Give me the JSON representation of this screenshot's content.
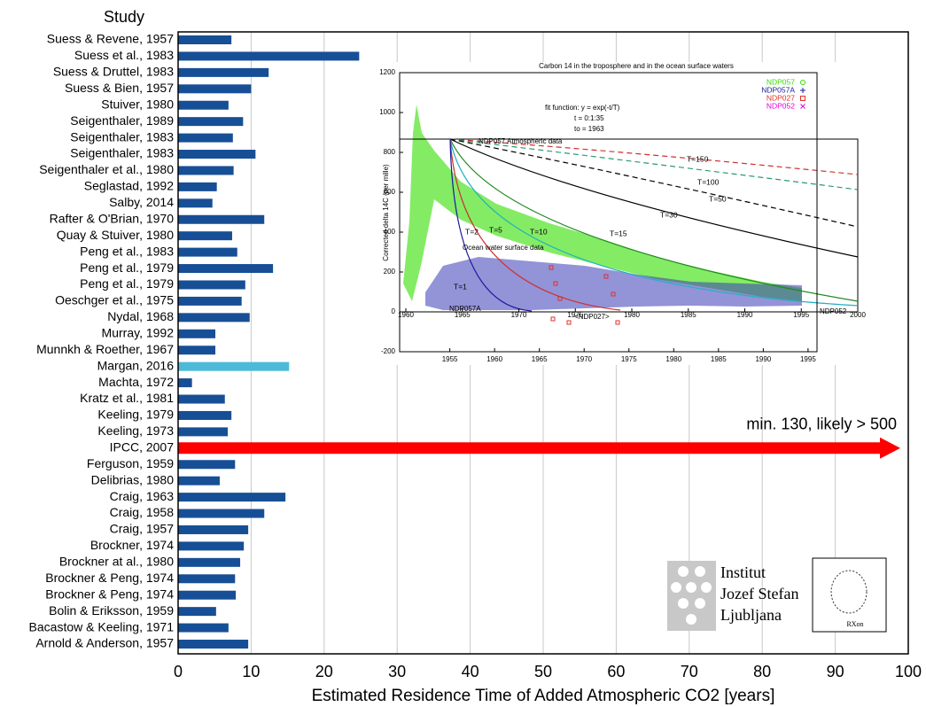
{
  "chart_data": [
    {
      "type": "bar",
      "orientation": "horizontal",
      "category_header": "Study",
      "x_label": "Estimated Residence Time of Added Atmospheric CO2 [years]",
      "categories": [
        "Suess & Revene, 1957",
        "Suess et al., 1983",
        "Suess & Druttel, 1983",
        "Suess & Bien, 1957",
        "Stuiver, 1980",
        "Seigenthaler, 1989",
        "Seigenthaler, 1983",
        "Seigenthaler, 1983",
        "Seigenthaler et al., 1980",
        "Seglastad, 1992",
        "Salby, 2014",
        "Rafter & O'Brian, 1970",
        "Quay & Stuiver, 1980",
        "Peng et al., 1983",
        "Peng et al., 1979",
        "Peng et al., 1979",
        "Oeschger et al., 1975",
        "Nydal, 1968",
        "Murray, 1992",
        "Munnkh & Roether, 1967",
        "Margan, 2016",
        "Machta, 1972",
        "Kratz et al., 1981",
        "Keeling, 1979",
        "Keeling, 1973",
        "IPCC, 2007",
        "Ferguson, 1959",
        "Delibrias, 1980",
        "Craig, 1963",
        "Craig, 1958",
        "Craig, 1957",
        "Brockner, 1974",
        "Brockner at al., 1980",
        "Brockner & Peng, 1974",
        "Brockner & Peng, 1974",
        "Bolin & Eriksson, 1959",
        "Bacastow & Keeling, 1971",
        "Arnold &  Anderson, 1957"
      ],
      "values": [
        7.3,
        24.8,
        12.4,
        10.0,
        6.9,
        8.9,
        7.5,
        10.6,
        7.6,
        5.3,
        4.7,
        11.8,
        7.4,
        8.1,
        13.0,
        9.2,
        8.7,
        9.8,
        5.1,
        5.1,
        15.2,
        1.9,
        6.4,
        7.3,
        6.8,
        null,
        7.8,
        5.7,
        14.7,
        11.8,
        9.6,
        9.0,
        8.5,
        7.8,
        7.9,
        5.2,
        6.9,
        9.6
      ],
      "colors": [
        "#174f96",
        "#174f96",
        "#174f96",
        "#174f96",
        "#174f96",
        "#174f96",
        "#174f96",
        "#174f96",
        "#174f96",
        "#174f96",
        "#174f96",
        "#174f96",
        "#174f96",
        "#174f96",
        "#174f96",
        "#174f96",
        "#174f96",
        "#174f96",
        "#174f96",
        "#174f96",
        "#4cbad8",
        "#174f96",
        "#174f96",
        "#174f96",
        "#174f96",
        "#ff0000",
        "#174f96",
        "#174f96",
        "#174f96",
        "#174f96",
        "#174f96",
        "#174f96",
        "#174f96",
        "#174f96",
        "#174f96",
        "#174f96",
        "#174f96",
        "#174f96"
      ],
      "annotations": [
        {
          "text": "min. 130, likely > 500",
          "color": "#ff0000"
        }
      ],
      "xlim": [
        0,
        100
      ],
      "xticks": [
        0,
        10,
        20,
        30,
        40,
        50,
        60,
        70,
        80,
        90,
        100
      ],
      "grid": true
    },
    {
      "type": "scatter",
      "title": "Carbon 14 in the troposphere and in the ocean surface waters",
      "y_label": "Corrected delta 14C (per mille)",
      "xlim": [
        1949.4,
        1996
      ],
      "xticks": [
        1955,
        1960,
        1965,
        1970,
        1975,
        1980,
        1985,
        1990,
        1995
      ],
      "x2lim": [
        1959.45,
        2000
      ],
      "x2ticks": [
        1960,
        1965,
        1970,
        1975,
        1980,
        1985,
        1990,
        1995,
        2000
      ],
      "ylim": [
        -200,
        1200
      ],
      "yticks": [
        -200,
        0,
        200,
        400,
        600,
        800,
        1000,
        1200
      ],
      "legend": [
        {
          "name": "NDP057",
          "color": "#33dd00"
        },
        {
          "name": "NDP057A",
          "color": "#1a1aa0"
        },
        {
          "name": "NDP027",
          "color": "#e0302a"
        },
        {
          "name": "NDP052",
          "color": "#e000e0"
        }
      ],
      "fit_text": [
        "fit function:   y = exp(-t/T)",
        "t = 0:1:35",
        "to = 1963"
      ],
      "curve_labels": [
        "T=150",
        "T=100",
        "T=50",
        "T=30",
        "T=15",
        "T=10",
        "T=5",
        "T=2",
        "T=1"
      ],
      "annotations": [
        "NDP057  Atmospheric data",
        "Ocean water surface data",
        "NDP057A",
        "<NDP027>",
        "NDP052"
      ]
    }
  ],
  "logos": {
    "institute": [
      "Institut",
      "Jozef Stefan",
      "Ljubljana"
    ],
    "signature": "RXon"
  }
}
